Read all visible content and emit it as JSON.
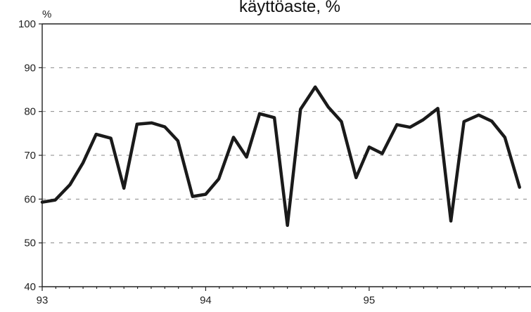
{
  "chart_data": {
    "type": "line",
    "title": "käyttöaste, %",
    "ylabel": "%",
    "xlabel": "",
    "ylim": [
      40,
      100
    ],
    "yticks": [
      40,
      50,
      60,
      70,
      80,
      90,
      100
    ],
    "xlim": [
      1993,
      1995.99
    ],
    "xticks": [
      {
        "value": 1993,
        "label": "93"
      },
      {
        "value": 1994,
        "label": "94"
      },
      {
        "value": 1995,
        "label": "95"
      }
    ],
    "grid": "horizontal dashed",
    "series": [
      {
        "x": [
          1993.0,
          1993.08,
          1993.17,
          1993.25,
          1993.33,
          1993.42,
          1993.5,
          1993.58,
          1993.67,
          1993.75,
          1993.83,
          1993.92,
          1994.0,
          1994.08,
          1994.17,
          1994.25,
          1994.33,
          1994.42,
          1994.5,
          1994.58,
          1994.67,
          1994.75,
          1994.83,
          1994.92,
          1995.0,
          1995.08,
          1995.17,
          1995.25,
          1995.33,
          1995.42,
          1995.5,
          1995.58,
          1995.67,
          1995.75,
          1995.83,
          1995.92
        ],
        "values": [
          59.3,
          59.8,
          63.3,
          68.3,
          74.8,
          73.9,
          62.5,
          77.1,
          77.4,
          76.5,
          73.3,
          60.6,
          61.1,
          64.6,
          74.1,
          69.6,
          79.5,
          78.6,
          54.0,
          80.5,
          85.6,
          81.0,
          77.7,
          64.9,
          71.9,
          70.4,
          77.0,
          76.4,
          78.1,
          80.7,
          55.0,
          77.7,
          79.2,
          77.8,
          74.1,
          62.7
        ]
      }
    ]
  }
}
